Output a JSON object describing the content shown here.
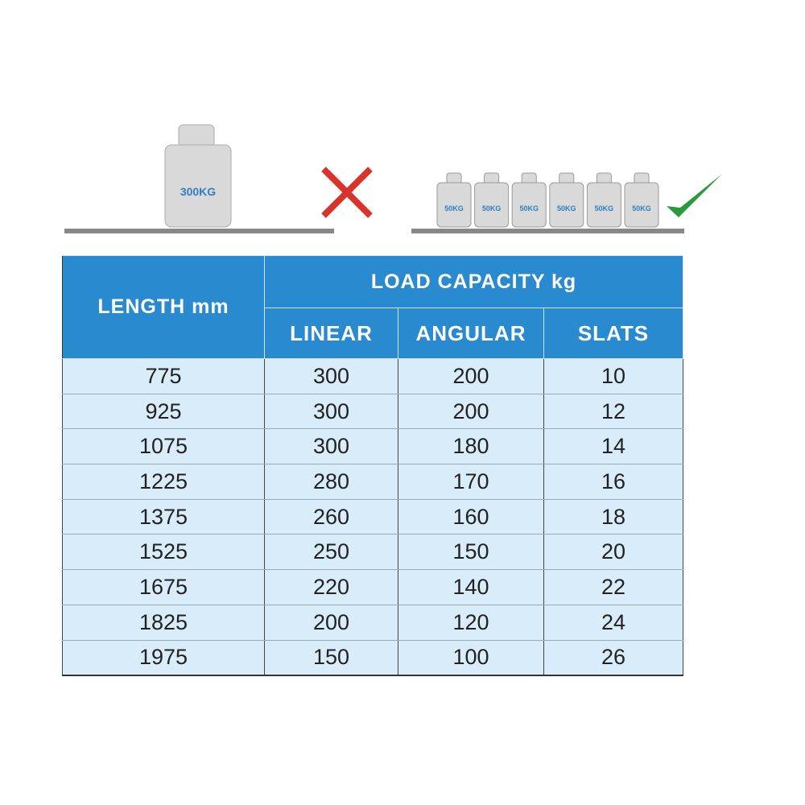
{
  "illustration": {
    "wrong_weight": "300KG",
    "right_weights": [
      "50KG",
      "50KG",
      "50KG",
      "50KG",
      "50KG",
      "50KG"
    ]
  },
  "table": {
    "header": {
      "length": "LENGTH mm",
      "load_capacity": "LOAD CAPACITY kg",
      "linear": "LINEAR",
      "angular": "ANGULAR",
      "slats": "SLATS"
    },
    "rows": [
      [
        775,
        300,
        200,
        10
      ],
      [
        925,
        300,
        200,
        12
      ],
      [
        1075,
        300,
        180,
        14
      ],
      [
        1225,
        280,
        170,
        16
      ],
      [
        1375,
        260,
        160,
        18
      ],
      [
        1525,
        250,
        150,
        20
      ],
      [
        1675,
        220,
        140,
        22
      ],
      [
        1825,
        200,
        120,
        24
      ],
      [
        1975,
        150,
        100,
        26
      ]
    ]
  }
}
